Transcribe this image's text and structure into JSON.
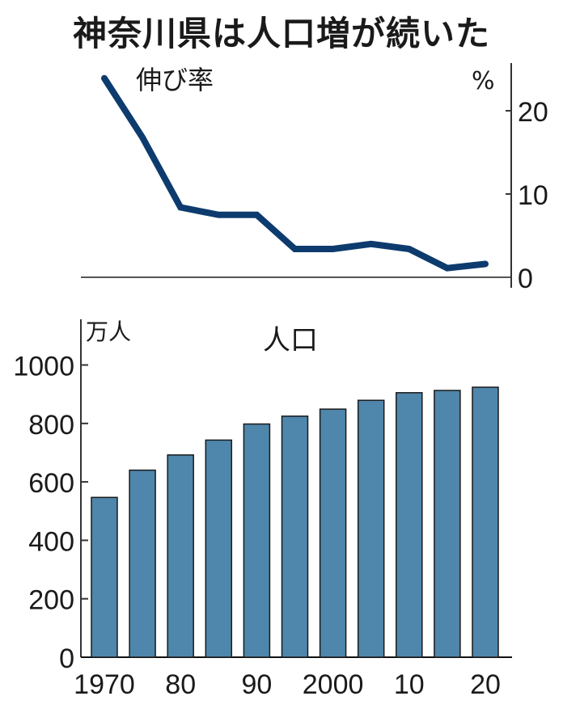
{
  "title": "神奈川県は人口増が続いた",
  "colors": {
    "line": "#0d3b6e",
    "bar_fill": "#4f86ab",
    "bar_stroke": "#1a1a1a",
    "axis": "#333333",
    "text": "#1a1a1a"
  },
  "chart_data": [
    {
      "type": "line",
      "title": "伸び率",
      "ylabel": "%",
      "y_axis_position": "right",
      "ylim": [
        0,
        25
      ],
      "yticks": [
        0,
        10,
        20
      ],
      "x": [
        1970,
        1975,
        1980,
        1985,
        1990,
        1995,
        2000,
        2005,
        2010,
        2015,
        2020
      ],
      "series": [
        {
          "name": "伸び率",
          "values": [
            23.9,
            16.8,
            8.4,
            7.5,
            7.5,
            3.4,
            3.4,
            4.0,
            3.4,
            1.1,
            1.6
          ]
        }
      ],
      "grid": false
    },
    {
      "type": "bar",
      "title": "人口",
      "ylabel": "万人",
      "ylim": [
        0,
        1100
      ],
      "yticks": [
        0,
        200,
        400,
        600,
        800,
        1000
      ],
      "categories": [
        1970,
        1975,
        1980,
        1985,
        1990,
        1995,
        2000,
        2005,
        2010,
        2015,
        2020
      ],
      "xtick_labels": [
        "1970",
        "80",
        "90",
        "2000",
        "10",
        "20"
      ],
      "xtick_positions": [
        1970,
        1980,
        1990,
        2000,
        2010,
        2020
      ],
      "values": [
        547,
        640,
        692,
        743,
        798,
        825,
        849,
        879,
        905,
        913,
        924
      ],
      "grid": false
    }
  ]
}
